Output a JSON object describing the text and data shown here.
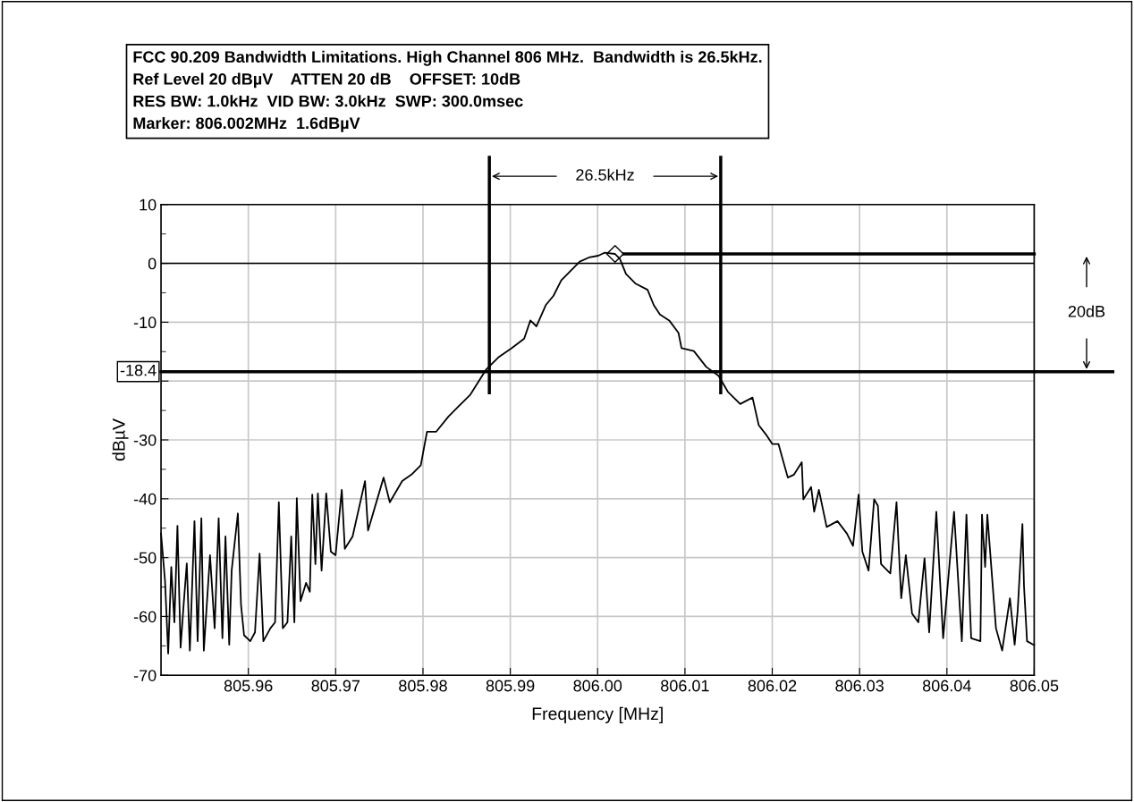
{
  "chart_data": {
    "type": "line",
    "title": "FCC 90.209 Bandwidth Limitations. High Channel 806 MHz.  Bandwidth is 26.5kHz.",
    "subtitle": "Ref Level 20 dBµV    ATTEN 20 dB    OFFSET: 10dB\nRES BW: 1.0kHz  VID BW: 3.0kHz  SWP: 300.0msec\nMarker: 806.002MHz  1.6dBµV",
    "xlabel": "Frequency [MHz]",
    "ylabel": "dBµV",
    "series": [
      {
        "type": "line",
        "color": "#000000",
        "x": [
          805.95,
          805.95046,
          805.95082,
          805.95117,
          805.95153,
          805.95188,
          805.95224,
          805.95259,
          805.95295,
          805.9533,
          805.95383,
          805.95419,
          805.95462,
          805.9549,
          805.95561,
          805.95614,
          805.9566,
          805.95703,
          805.95738,
          805.95781,
          805.95809,
          805.9588,
          805.95916,
          805.95951,
          805.96022,
          805.96076,
          805.96129,
          805.96172,
          805.96253,
          805.96306,
          805.96349,
          805.96395,
          805.96448,
          805.96491,
          805.96527,
          805.96555,
          805.96598,
          805.96661,
          805.96704,
          805.96732,
          805.96768,
          805.96796,
          805.96839,
          805.96892,
          805.96945,
          805.96999,
          805.9707,
          805.97105,
          805.97194,
          805.97336,
          805.97371,
          805.97549,
          805.9762,
          805.97762,
          805.97868,
          805.97975,
          805.98046,
          805.98152,
          805.98294,
          805.98401,
          805.98543,
          805.9872,
          805.98862,
          805.99018,
          805.99159,
          805.9923,
          805.993,
          805.99406,
          805.99495,
          805.99583,
          805.99689,
          805.99795,
          805.99901,
          806.00007,
          806.00078,
          806.002,
          806.00254,
          806.00325,
          806.00431,
          806.00572,
          806.00643,
          806.00714,
          806.0082,
          806.00926,
          806.00961,
          806.01102,
          806.01244,
          806.01385,
          806.01491,
          806.01633,
          806.01774,
          806.01845,
          806.01929,
          806.02,
          806.02071,
          806.02178,
          806.02249,
          806.02338,
          806.02356,
          806.02445,
          806.0248,
          806.02534,
          806.02623,
          806.02747,
          806.02854,
          806.02925,
          806.02989,
          806.03032,
          806.03103,
          806.03167,
          806.0321,
          806.03246,
          806.03352,
          806.03423,
          806.03477,
          806.0353,
          806.03601,
          806.03673,
          806.03744,
          806.03797,
          806.03879,
          806.03957,
          806.04082,
          806.04171,
          806.04224,
          806.04278,
          806.04384,
          806.04402,
          806.04438,
          806.04463,
          806.04562,
          806.04633,
          806.04722,
          806.04776,
          806.04811,
          806.04865,
          806.04883,
          806.04918,
          806.04989,
          806.05
        ],
        "values": [
          -45.9,
          -54,
          -66.3,
          -51.6,
          -61,
          -44.6,
          -65.3,
          -58,
          -51,
          -65.8,
          -43.8,
          -64.2,
          -43.3,
          -65.8,
          -49.6,
          -62,
          -43.3,
          -63.7,
          -46.4,
          -64.8,
          -52.2,
          -42.5,
          -58,
          -63.2,
          -64.2,
          -62.7,
          -49.3,
          -64.2,
          -62,
          -61,
          -40.6,
          -62,
          -61,
          -46.4,
          -61,
          -39.9,
          -57.4,
          -54.3,
          -55.8,
          -39.3,
          -51.1,
          -39.1,
          -52.2,
          -39.1,
          -49,
          -49.6,
          -38.5,
          -48.5,
          -46.4,
          -37,
          -45.4,
          -36.4,
          -40.6,
          -37,
          -35.9,
          -34.3,
          -28.6,
          -28.6,
          -26,
          -24.4,
          -22.3,
          -18.1,
          -16,
          -14.4,
          -12.8,
          -9.7,
          -10.7,
          -7.1,
          -5.5,
          -2.9,
          -1.3,
          0.3,
          1,
          1.3,
          1.8,
          1.6,
          0.8,
          -1.8,
          -3.4,
          -4.5,
          -7.1,
          -8.7,
          -9.7,
          -11.8,
          -14.4,
          -14.9,
          -17.6,
          -19.1,
          -21.8,
          -23.9,
          -22.8,
          -27.5,
          -29.1,
          -30.7,
          -30.7,
          -36.4,
          -35.9,
          -33.8,
          -40.1,
          -38,
          -42.2,
          -38.5,
          -44.8,
          -43.8,
          -45.9,
          -48,
          -39.3,
          -49,
          -52.2,
          -40.1,
          -41.2,
          -51.1,
          -52.7,
          -40.6,
          -56.9,
          -49.6,
          -59.5,
          -61,
          -50.1,
          -62.7,
          -42.2,
          -63.7,
          -42.2,
          -64.2,
          -42.7,
          -63.7,
          -64.2,
          -42.7,
          -51.6,
          -42.7,
          -62,
          -65.8,
          -56.9,
          -64.8,
          -59,
          -44.3,
          -54.8,
          -64.2,
          -64.8,
          -64.8
        ]
      },
      {
        "type": "line",
        "color": "#000000",
        "x": [
          806.003,
          806.05
        ],
        "values": [
          1.6,
          1.6
        ]
      },
      {
        "type": "scatter",
        "color": "#000000",
        "marker": "diamond",
        "x": [
          806.002
        ],
        "values": [
          1.6
        ]
      }
    ],
    "ref_lines": [
      {
        "axis": "y",
        "value": -18.4,
        "label": "-18.4",
        "color": "#000000"
      },
      {
        "axis": "y",
        "value": 0,
        "color": "#000000"
      },
      {
        "axis": "x",
        "value": 805.9876,
        "color": "#000000"
      },
      {
        "axis": "x",
        "value": 806.0141,
        "color": "#000000"
      }
    ],
    "annotations": [
      "26.5kHz",
      "20dB"
    ],
    "xlim": [
      805.95,
      806.05
    ],
    "xticks": [
      {
        "value": 805.96,
        "label": "805.96"
      },
      {
        "value": 805.97,
        "label": "805.97"
      },
      {
        "value": 805.98,
        "label": "805.98"
      },
      {
        "value": 805.99,
        "label": "805.99"
      },
      {
        "value": 806.0,
        "label": "806.00"
      },
      {
        "value": 806.01,
        "label": "806.01"
      },
      {
        "value": 806.02,
        "label": "806.02"
      },
      {
        "value": 806.03,
        "label": "806.03"
      },
      {
        "value": 806.04,
        "label": "806.04"
      },
      {
        "value": 806.05,
        "label": "806.05"
      }
    ],
    "ylim": [
      -70,
      10
    ],
    "yticks": [
      -70,
      -60,
      -50,
      -40,
      -30,
      {
        "value": -20,
        "label": null
      },
      -10,
      0,
      10
    ],
    "grid": true,
    "legend": false
  }
}
